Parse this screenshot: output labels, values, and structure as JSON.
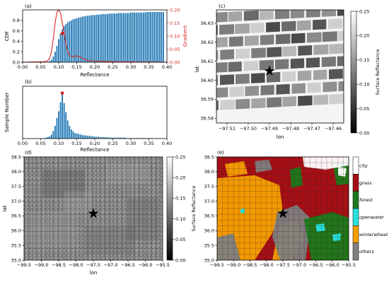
{
  "panel_labels": {
    "a": "(a)",
    "b": "(b)",
    "c": "(c)",
    "d": "(d)",
    "e": "(e)"
  },
  "colors": {
    "bar": "#1f77b4",
    "line": "#d62728",
    "marker": "#d62728"
  },
  "chart_data": [
    {
      "id": "a",
      "type": "bar",
      "xlabel": "Reflectance",
      "ylabel": "CDF",
      "y2label": "Gradient",
      "xlim": [
        0.0,
        0.4
      ],
      "ylim": [
        0.0,
        1.0
      ],
      "y2lim": [
        0.0,
        0.2
      ],
      "xticks": [
        "0.00",
        "0.05",
        "0.10",
        "0.15",
        "0.20",
        "0.25",
        "0.30",
        "0.35",
        "0.40"
      ],
      "yticks": [
        "0.0",
        "0.2",
        "0.4",
        "0.6",
        "0.8"
      ],
      "y2ticks": [
        "0.00",
        "0.05",
        "0.10",
        "0.15",
        "0.20"
      ],
      "x": [
        0.005,
        0.01,
        0.015,
        0.02,
        0.025,
        0.03,
        0.035,
        0.04,
        0.045,
        0.05,
        0.055,
        0.06,
        0.065,
        0.07,
        0.075,
        0.08,
        0.085,
        0.09,
        0.095,
        0.1,
        0.105,
        0.11,
        0.115,
        0.12,
        0.125,
        0.13,
        0.135,
        0.14,
        0.145,
        0.15,
        0.155,
        0.16,
        0.165,
        0.17,
        0.175,
        0.18,
        0.185,
        0.19,
        0.195,
        0.2,
        0.205,
        0.21,
        0.215,
        0.22,
        0.225,
        0.23,
        0.235,
        0.24,
        0.245,
        0.25,
        0.255,
        0.26,
        0.265,
        0.27,
        0.275,
        0.28,
        0.285,
        0.29,
        0.295,
        0.3,
        0.305,
        0.31,
        0.315,
        0.32,
        0.325,
        0.33,
        0.335,
        0.34,
        0.345,
        0.35,
        0.355,
        0.36,
        0.365,
        0.37,
        0.375,
        0.38,
        0.385,
        0.39
      ],
      "series": [
        {
          "name": "",
          "kind": "bar",
          "axis": "left",
          "values": [
            0,
            0,
            0,
            0,
            0,
            0,
            0,
            0,
            0,
            0,
            0,
            0,
            0,
            0.01,
            0.02,
            0.05,
            0.11,
            0.2,
            0.31,
            0.44,
            0.55,
            0.63,
            0.69,
            0.73,
            0.76,
            0.78,
            0.8,
            0.82,
            0.83,
            0.84,
            0.85,
            0.86,
            0.87,
            0.88,
            0.88,
            0.89,
            0.89,
            0.9,
            0.9,
            0.9,
            0.91,
            0.91,
            0.91,
            0.92,
            0.92,
            0.92,
            0.92,
            0.93,
            0.93,
            0.93,
            0.93,
            0.93,
            0.94,
            0.94,
            0.94,
            0.94,
            0.94,
            0.94,
            0.94,
            0.95,
            0.95,
            0.95,
            0.95,
            0.95,
            0.95,
            0.95,
            0.95,
            0.95,
            0.96,
            0.96,
            0.96,
            0.96,
            0.96,
            0.96,
            0.96,
            0.96,
            0.96,
            0.96
          ]
        },
        {
          "name": "",
          "kind": "line",
          "axis": "right",
          "points": [
            [
              0.0,
              0.0
            ],
            [
              0.06,
              0.002
            ],
            [
              0.07,
              0.006
            ],
            [
              0.075,
              0.015
            ],
            [
              0.08,
              0.04
            ],
            [
              0.085,
              0.09
            ],
            [
              0.09,
              0.15
            ],
            [
              0.095,
              0.19
            ],
            [
              0.1,
              0.2
            ],
            [
              0.105,
              0.19
            ],
            [
              0.11,
              0.15
            ],
            [
              0.115,
              0.11
            ],
            [
              0.12,
              0.07
            ],
            [
              0.125,
              0.04
            ],
            [
              0.13,
              0.025
            ],
            [
              0.14,
              0.02
            ],
            [
              0.15,
              0.025
            ],
            [
              0.16,
              0.02
            ],
            [
              0.17,
              0.012
            ],
            [
              0.18,
              0.007
            ],
            [
              0.2,
              0.004
            ],
            [
              0.25,
              0.002
            ],
            [
              0.3,
              0.001
            ],
            [
              0.4,
              0.0
            ]
          ]
        }
      ],
      "marker": {
        "x": 0.11,
        "y": 0.55
      }
    },
    {
      "id": "b",
      "type": "bar",
      "xlabel": "Reflectance",
      "ylabel": "Sample Number",
      "xlim": [
        0.0,
        0.4
      ],
      "xticks": [
        "0.00",
        "0.05",
        "0.10",
        "0.15",
        "0.20",
        "0.25",
        "0.30",
        "0.35",
        "0.40"
      ],
      "x": [
        0.06,
        0.065,
        0.07,
        0.075,
        0.08,
        0.085,
        0.09,
        0.095,
        0.1,
        0.105,
        0.11,
        0.115,
        0.12,
        0.125,
        0.13,
        0.135,
        0.14,
        0.145,
        0.15,
        0.155,
        0.16,
        0.165,
        0.17,
        0.175,
        0.18,
        0.185,
        0.19,
        0.195,
        0.2,
        0.205,
        0.21,
        0.215,
        0.22,
        0.225,
        0.23,
        0.235,
        0.24,
        0.245,
        0.25,
        0.255,
        0.26,
        0.265,
        0.27,
        0.275,
        0.28,
        0.285,
        0.29,
        0.295,
        0.3,
        0.305,
        0.31,
        0.315,
        0.32,
        0.325,
        0.33,
        0.335,
        0.34,
        0.345,
        0.35,
        0.355,
        0.36
      ],
      "series": [
        {
          "name": "",
          "kind": "bar",
          "values": [
            1,
            2,
            3,
            5,
            9,
            17,
            28,
            45,
            60,
            80,
            100,
            78,
            58,
            40,
            28,
            20,
            16,
            12,
            11,
            10,
            9,
            8,
            7,
            7,
            6,
            6,
            5,
            5,
            4,
            4,
            4,
            3,
            3,
            3,
            3,
            3,
            2,
            2,
            2,
            2,
            2,
            2,
            2,
            2,
            2,
            2,
            1,
            1,
            1,
            1,
            1,
            1,
            1,
            1,
            1,
            1,
            1,
            1,
            1,
            1,
            1
          ]
        }
      ],
      "marker": {
        "x": 0.11,
        "y": 100
      }
    },
    {
      "id": "c",
      "type": "heatmap",
      "xlabel": "lon",
      "ylabel": "lat",
      "colorbar_label": "Surface Reflectance",
      "xticks": [
        "−97.51",
        "−97.50",
        "−97.49",
        "−97.48",
        "−97.47",
        "−97.46"
      ],
      "yticks": [
        "36.58",
        "36.59",
        "36.60",
        "36.61",
        "36.62",
        "36.63"
      ],
      "cbar_ticks": [
        "0.00",
        "0.05",
        "0.10",
        "0.15",
        "0.20",
        "0.25"
      ],
      "clim": [
        0.0,
        0.25
      ],
      "marker": {
        "lon": -97.49,
        "lat": 36.605
      }
    },
    {
      "id": "d",
      "type": "heatmap",
      "xlabel": "lon",
      "ylabel": "lat",
      "colorbar_label": "Surface Reflectance",
      "xticks": [
        "−99.5",
        "−99.0",
        "−98.5",
        "−98.0",
        "−97.5",
        "−97.0",
        "−96.5",
        "−96.0",
        "−95.5"
      ],
      "yticks": [
        "35.0",
        "35.5",
        "36.0",
        "36.5",
        "37.0",
        "37.5",
        "38.0",
        "38.5"
      ],
      "cbar_ticks": [
        "0.00",
        "0.05",
        "0.10",
        "0.15",
        "0.20",
        "0.25"
      ],
      "clim": [
        0.0,
        0.25
      ],
      "marker": {
        "lon": -97.5,
        "lat": 36.6
      }
    },
    {
      "id": "e",
      "type": "heatmap",
      "xlabel": "",
      "ylabel": "",
      "xticks": [
        "−99.5",
        "−99.0",
        "−98.5",
        "−98.0",
        "−97.5",
        "−97.0",
        "−96.5",
        "−96.0",
        "−95.5"
      ],
      "yticks": [
        "35.0",
        "35.5",
        "36.0",
        "36.5",
        "37.0",
        "37.5",
        "38.0",
        "38.5"
      ],
      "legend_classes": [
        {
          "name": "city",
          "color": "#ffffff"
        },
        {
          "name": "grass",
          "color": "#a50f15"
        },
        {
          "name": "forest",
          "color": "#1b7a1b"
        },
        {
          "name": "openwater",
          "color": "#27e0e0"
        },
        {
          "name": "winterwheat",
          "color": "#f5a000"
        },
        {
          "name": "others",
          "color": "#808080"
        }
      ],
      "marker": {
        "lon": -97.5,
        "lat": 36.6
      }
    }
  ]
}
